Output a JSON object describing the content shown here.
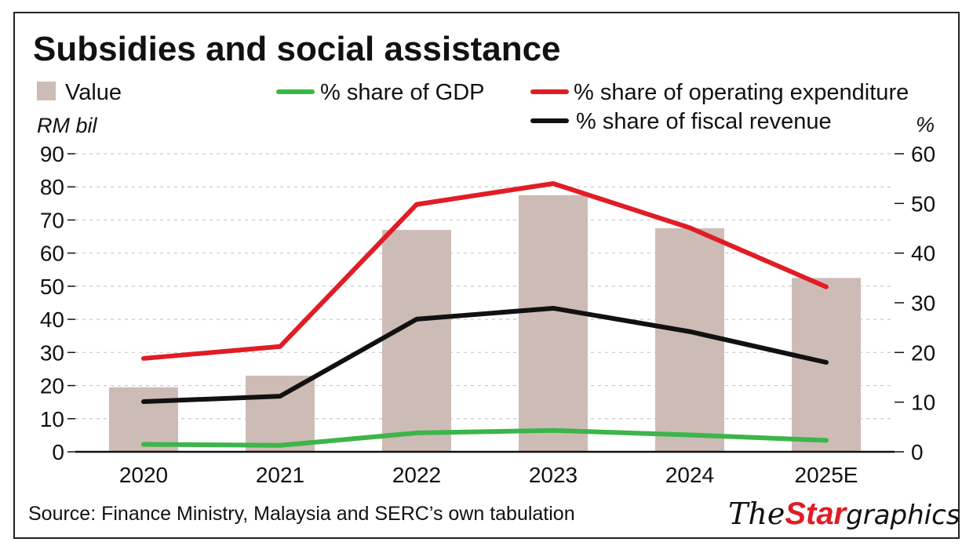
{
  "colors": {
    "bar": "#cdbcb6",
    "gdp": "#3cb54a",
    "opex": "#e01d25",
    "fiscal": "#111111",
    "grid": "#c9c9c9",
    "axis": "#111111",
    "logo_red": "#e01d25"
  },
  "chart_data": {
    "type": "bar",
    "title": "Subsidies and social assistance",
    "categories": [
      "2020",
      "2021",
      "2022",
      "2023",
      "2024",
      "2025E"
    ],
    "legend": {
      "value": "Value",
      "gdp": "% share of GDP",
      "opex": "% share of operating expenditure",
      "fiscal": "% share of fiscal revenue"
    },
    "y_left": {
      "label": "RM bil",
      "ylim": [
        0,
        90
      ],
      "ticks": [
        "0",
        "10",
        "20",
        "30",
        "40",
        "50",
        "60",
        "70",
        "80",
        "90"
      ]
    },
    "y_right": {
      "label": "%",
      "ylim": [
        0,
        60
      ],
      "ticks": [
        "0",
        "10",
        "20",
        "30",
        "40",
        "50",
        "60"
      ]
    },
    "grid": true,
    "series": [
      {
        "name": "Value",
        "kind": "bar",
        "axis": "left",
        "values": [
          19.5,
          23,
          67,
          77.5,
          67.5,
          52.5
        ]
      },
      {
        "name": "% share of GDP",
        "kind": "line",
        "axis": "right",
        "values": [
          1.5,
          1.3,
          3.8,
          4.3,
          3.4,
          2.3
        ]
      },
      {
        "name": "% share of operating expenditure",
        "kind": "line",
        "axis": "right",
        "values": [
          18.8,
          21.2,
          49.8,
          54,
          45.1,
          33.2
        ]
      },
      {
        "name": "% share of fiscal revenue",
        "kind": "line",
        "axis": "right",
        "values": [
          10.1,
          11.2,
          26.7,
          28.9,
          24.2,
          18
        ]
      }
    ]
  },
  "footer": {
    "source": "Source: Finance Ministry, Malaysia and SERC’s own tabulation",
    "logo_the": "The",
    "logo_star": "Star",
    "logo_graphics": "graphics"
  }
}
